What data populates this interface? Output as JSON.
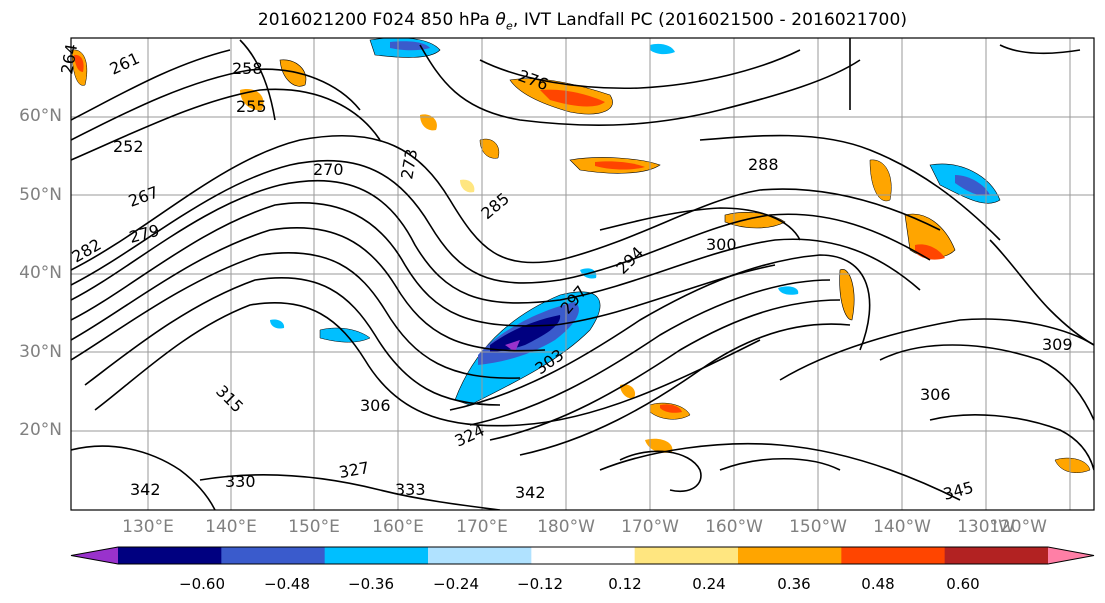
{
  "title": {
    "prefix": "2016021200 F024 850 hPa ",
    "theta": "θ",
    "theta_sub": "e",
    "suffix": ", IVT Landfall PC (2016021500 - 2016021700)"
  },
  "lat_labels": [
    "60°N",
    "50°N",
    "40°N",
    "30°N",
    "20°N"
  ],
  "lon_labels": [
    "130°E",
    "140°E",
    "150°E",
    "160°E",
    "170°E",
    "180°W",
    "170°W",
    "160°W",
    "150°W",
    "140°W",
    "130°W",
    "120°W"
  ],
  "contour_labels": [
    "261",
    "258",
    "255",
    "252",
    "267",
    "270",
    "273",
    "276",
    "279",
    "282",
    "285",
    "288",
    "294",
    "297",
    "300",
    "303",
    "306",
    "315",
    "324",
    "327",
    "330",
    "333",
    "342",
    "345",
    "309",
    "264"
  ],
  "colorbar": {
    "tick_labels": [
      "−0.60",
      "−0.48",
      "−0.36",
      "−0.24",
      "−0.12",
      "0.12",
      "0.24",
      "0.36",
      "0.48",
      "0.60"
    ],
    "colors": [
      "#9932cc",
      "#000080",
      "#3a5bcc",
      "#00bfff",
      "#b0e2ff",
      "#ffffff",
      "#ffe680",
      "#ffa500",
      "#ff4500",
      "#b22222",
      "#ff7fa6"
    ]
  }
}
